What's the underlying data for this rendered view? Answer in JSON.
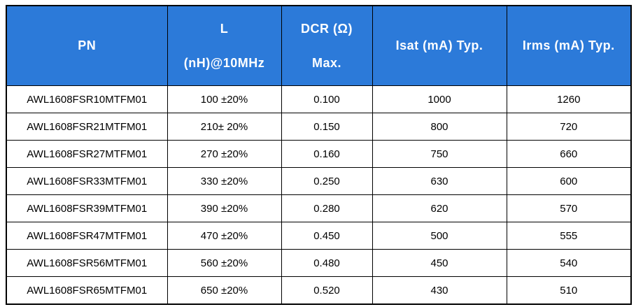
{
  "colors": {
    "header_bg": "#2C7AD9",
    "header_text": "#FFFFFF",
    "border": "#000000",
    "body_bg": "#FFFFFF",
    "body_text": "#000000"
  },
  "table": {
    "header": {
      "pn": "PN",
      "l_line1": "L",
      "l_line2": "(nH)@10MHz",
      "dcr_line1": "DCR (Ω)",
      "dcr_line2": "Max.",
      "isat": "Isat (mA) Typ.",
      "irms": "Irms (mA) Typ."
    },
    "rows": [
      {
        "pn": "AWL1608FSR10MTFM01",
        "l": "100 ±20%",
        "dcr": "0.100",
        "isat": "1000",
        "irms": "1260"
      },
      {
        "pn": "AWL1608FSR21MTFM01",
        "l": "210± 20%",
        "dcr": "0.150",
        "isat": "800",
        "irms": "720"
      },
      {
        "pn": "AWL1608FSR27MTFM01",
        "l": "270 ±20%",
        "dcr": "0.160",
        "isat": "750",
        "irms": "660"
      },
      {
        "pn": "AWL1608FSR33MTFM01",
        "l": "330 ±20%",
        "dcr": "0.250",
        "isat": "630",
        "irms": "600"
      },
      {
        "pn": "AWL1608FSR39MTFM01",
        "l": "390 ±20%",
        "dcr": "0.280",
        "isat": "620",
        "irms": "570"
      },
      {
        "pn": "AWL1608FSR47MTFM01",
        "l": "470 ±20%",
        "dcr": "0.450",
        "isat": "500",
        "irms": "555"
      },
      {
        "pn": "AWL1608FSR56MTFM01",
        "l": "560 ±20%",
        "dcr": "0.480",
        "isat": "450",
        "irms": "540"
      },
      {
        "pn": "AWL1608FSR65MTFM01",
        "l": "650 ±20%",
        "dcr": "0.520",
        "isat": "430",
        "irms": "510"
      }
    ]
  }
}
